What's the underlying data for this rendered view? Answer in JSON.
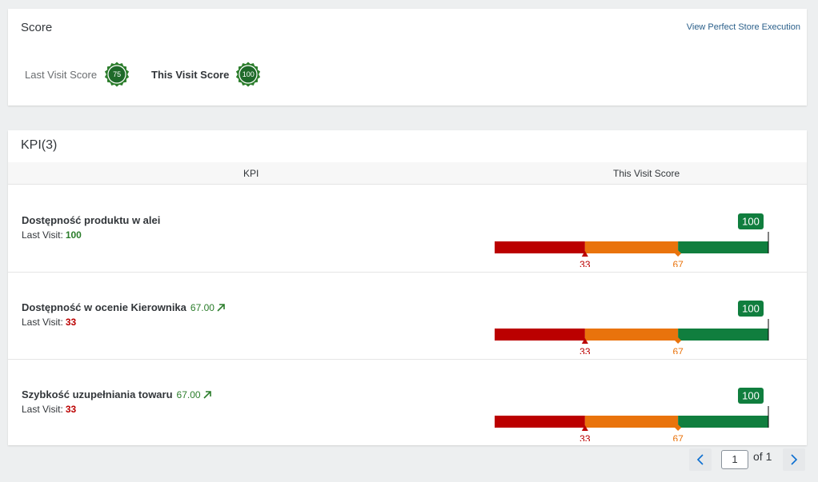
{
  "score_card": {
    "title": "Score",
    "link_label": "View Perfect Store Execution",
    "last_visit_label": "Last Visit Score",
    "last_visit_value": "75",
    "this_visit_label": "This Visit Score",
    "this_visit_value": "100"
  },
  "kpi_card": {
    "title": "KPI(3)",
    "columns": [
      "KPI",
      "This Visit Score"
    ],
    "rows": [
      {
        "name": "Dostępność produktu w alei",
        "trend": "",
        "last_visit_label": "Last Visit:",
        "last_visit_value": "100",
        "last_visit_status": "good",
        "score": 100,
        "score_label": "100",
        "thresholds": [
          33,
          67
        ],
        "max": 100
      },
      {
        "name": "Dostępność w ocenie Kierownika",
        "trend": "67.00",
        "last_visit_label": "Last Visit:",
        "last_visit_value": "33",
        "last_visit_status": "bad",
        "score": 100,
        "score_label": "100",
        "thresholds": [
          33,
          67
        ],
        "max": 100
      },
      {
        "name": "Szybkość uzupełniania towaru",
        "trend": "67.00",
        "last_visit_label": "Last Visit:",
        "last_visit_value": "33",
        "last_visit_status": "bad",
        "score": 100,
        "score_label": "100",
        "thresholds": [
          33,
          67
        ],
        "max": 100
      }
    ]
  },
  "pager": {
    "current_page": "1",
    "of_label": "of 1"
  },
  "colors": {
    "red": "#bb0000",
    "orange": "#e9730c",
    "green": "#107e3e",
    "badge_green": "#2b7d2b"
  },
  "icons": {
    "trend": "arrow-up-right-icon",
    "prev": "chevron-left-icon",
    "next": "chevron-right-icon",
    "badge": "seal-badge-icon"
  }
}
